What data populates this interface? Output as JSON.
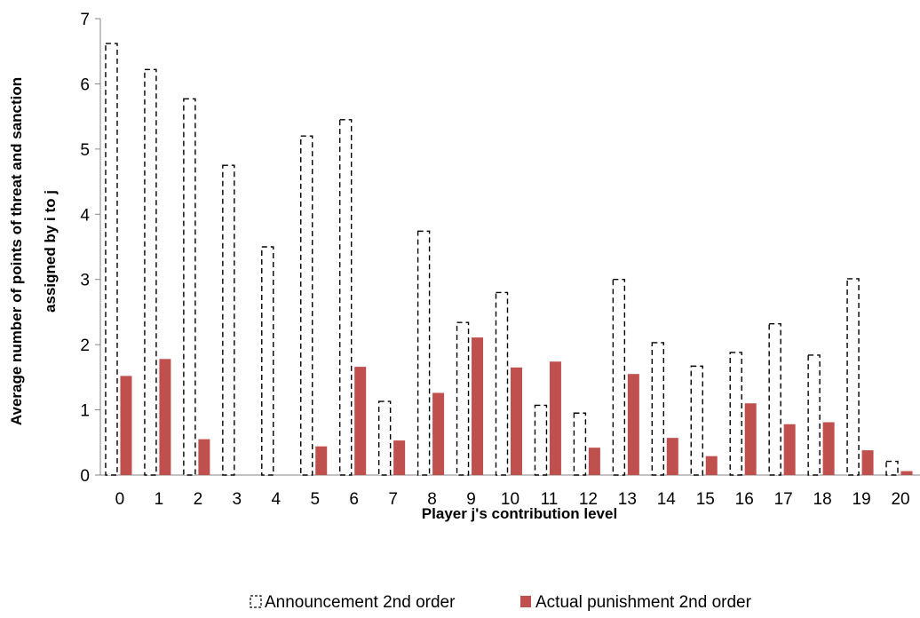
{
  "chart_data": {
    "type": "bar",
    "categories": [
      "0",
      "1",
      "2",
      "3",
      "4",
      "5",
      "6",
      "7",
      "8",
      "9",
      "10",
      "11",
      "12",
      "13",
      "14",
      "15",
      "16",
      "17",
      "18",
      "19",
      "20"
    ],
    "series": [
      {
        "name": "Announcement 2nd order",
        "values": [
          6.62,
          6.22,
          5.77,
          4.75,
          3.5,
          5.2,
          5.45,
          1.13,
          3.74,
          2.34,
          2.8,
          1.07,
          0.95,
          3.0,
          2.03,
          1.67,
          1.88,
          2.32,
          1.84,
          3.01,
          0.21
        ],
        "color": "#ffffff",
        "stroke": "#000000",
        "style": "dashed-outline"
      },
      {
        "name": "Actual punishment 2nd order",
        "values": [
          1.52,
          1.78,
          0.55,
          0.0,
          0.0,
          0.44,
          1.66,
          0.53,
          1.26,
          2.11,
          1.65,
          1.74,
          0.42,
          1.55,
          0.57,
          0.29,
          1.1,
          0.78,
          0.81,
          0.38,
          0.06
        ],
        "color": "#c0504d"
      }
    ],
    "xlabel": "Player j's contribution level",
    "ylabel_line1": "Average number of points of threat and sanction",
    "ylabel_line2": "assigned by i to j",
    "ylim": [
      0,
      7
    ],
    "yticks": [
      "0",
      "1",
      "2",
      "3",
      "4",
      "5",
      "6",
      "7"
    ],
    "grid": false,
    "legend": "bottom"
  }
}
